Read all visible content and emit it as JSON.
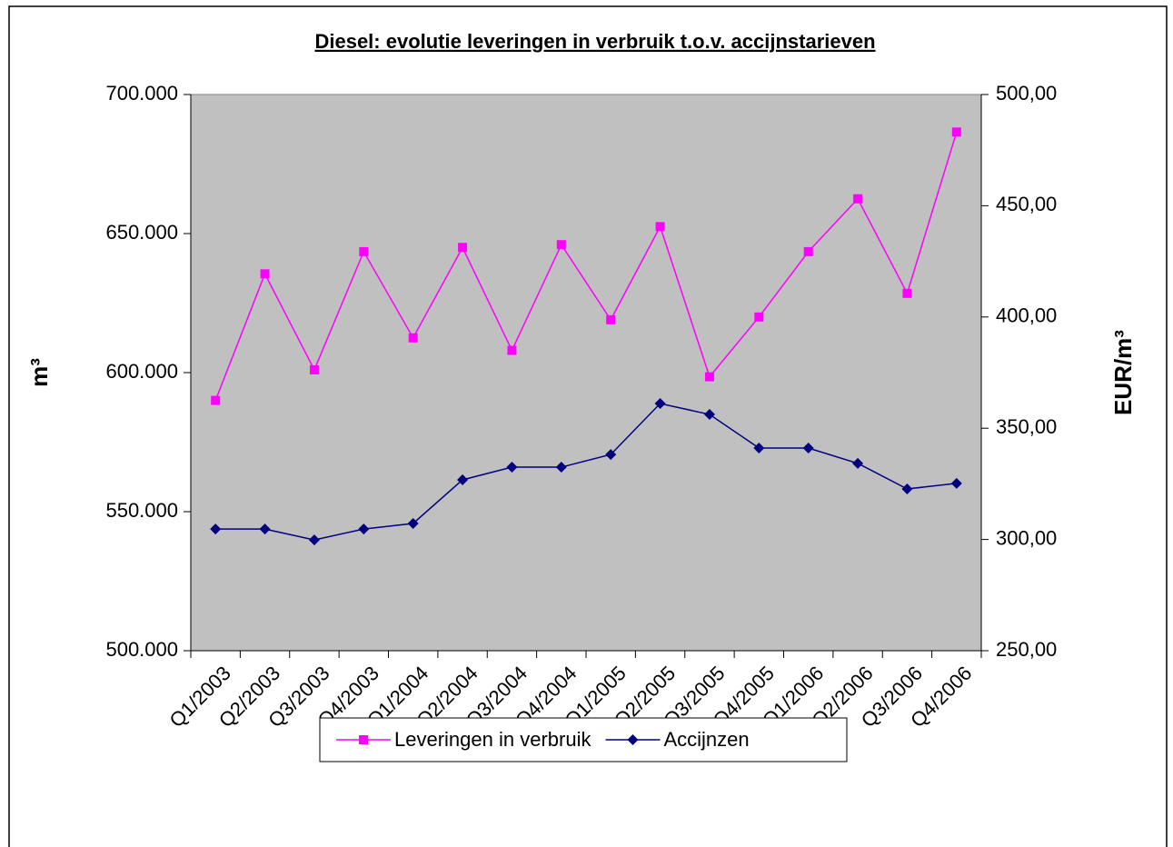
{
  "chart_data": {
    "type": "line",
    "title": "Diesel: evolutie leveringen in verbruik t.o.v. accijnstarieven",
    "y_label": "m³",
    "y2_label": "EUR/m³",
    "categories": [
      "Q1/2003",
      "Q2/2003",
      "Q3/2003",
      "Q4/2003",
      "Q1/2004",
      "Q2/2004",
      "Q3/2004",
      "Q4/2004",
      "Q1/2005",
      "Q2/2005",
      "Q3/2005",
      "Q4/2005",
      "Q1/2006",
      "Q2/2006",
      "Q3/2006",
      "Q4/2006"
    ],
    "series": [
      {
        "name": "Leveringen in verbruik",
        "color": "#ff00ff",
        "marker": "square",
        "values": [
          590000,
          635500,
          601000,
          643500,
          612500,
          645000,
          608000,
          646000,
          619000,
          652500,
          598500,
          620000,
          643500,
          662500,
          628500,
          686500
        ]
      },
      {
        "name": "Accijnzen",
        "color": "#000080",
        "marker": "diamond",
        "axis": "y2",
        "values": [
          304.7,
          304.7,
          299.8,
          304.7,
          307.2,
          326.8,
          332.5,
          332.5,
          338.2,
          361.1,
          356.2,
          341.1,
          341.1,
          334.2,
          322.7,
          325.2
        ]
      }
    ],
    "ylim": [
      500000,
      700000
    ],
    "yticks": [
      {
        "value": 500000,
        "label": "500.000"
      },
      {
        "value": 550000,
        "label": "550.000"
      },
      {
        "value": 600000,
        "label": "600.000"
      },
      {
        "value": 650000,
        "label": "650.000"
      },
      {
        "value": 700000,
        "label": "700.000"
      }
    ],
    "y2lim": [
      250,
      500
    ],
    "y2ticks": [
      {
        "value": 250,
        "label": "250,00"
      },
      {
        "value": 300,
        "label": "300,00"
      },
      {
        "value": 350,
        "label": "350,00"
      },
      {
        "value": 400,
        "label": "400,00"
      },
      {
        "value": 450,
        "label": "450,00"
      },
      {
        "value": 500,
        "label": "500,00"
      }
    ],
    "plot_background": "#c0c0c0",
    "legend": "bottom",
    "grid": false
  }
}
